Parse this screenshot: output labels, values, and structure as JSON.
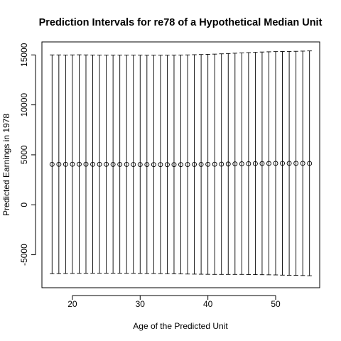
{
  "chart_data": {
    "type": "scatter",
    "title": "Prediction Intervals for re78 of a Hypothetical Median Unit",
    "xlabel": "Age of the Predicted Unit",
    "ylabel": "Predicted Earnings in 1978",
    "xlim": [
      15.5,
      56.5
    ],
    "ylim": [
      -8300,
      16300
    ],
    "x_ticks": [
      20,
      30,
      40,
      50
    ],
    "y_ticks": [
      -5000,
      0,
      5000,
      10000,
      15000
    ],
    "grid": false,
    "points": [
      {
        "x": 17,
        "fit": 4050,
        "lower": -6900,
        "upper": 15000
      },
      {
        "x": 18,
        "fit": 4050,
        "lower": -6890,
        "upper": 15000
      },
      {
        "x": 19,
        "fit": 4050,
        "lower": -6880,
        "upper": 14990
      },
      {
        "x": 20,
        "fit": 4060,
        "lower": -6870,
        "upper": 15000
      },
      {
        "x": 21,
        "fit": 4060,
        "lower": -6860,
        "upper": 15010
      },
      {
        "x": 22,
        "fit": 4060,
        "lower": -6860,
        "upper": 15000
      },
      {
        "x": 23,
        "fit": 4050,
        "lower": -6850,
        "upper": 14990
      },
      {
        "x": 24,
        "fit": 4050,
        "lower": -6850,
        "upper": 14980
      },
      {
        "x": 25,
        "fit": 4050,
        "lower": -6850,
        "upper": 14980
      },
      {
        "x": 26,
        "fit": 4040,
        "lower": -6850,
        "upper": 14980
      },
      {
        "x": 27,
        "fit": 4040,
        "lower": -6850,
        "upper": 14980
      },
      {
        "x": 28,
        "fit": 4040,
        "lower": -6860,
        "upper": 14980
      },
      {
        "x": 29,
        "fit": 4030,
        "lower": -6860,
        "upper": 14980
      },
      {
        "x": 30,
        "fit": 4030,
        "lower": -6870,
        "upper": 14980
      },
      {
        "x": 31,
        "fit": 4030,
        "lower": -6880,
        "upper": 14970
      },
      {
        "x": 32,
        "fit": 4020,
        "lower": -6880,
        "upper": 14970
      },
      {
        "x": 33,
        "fit": 4020,
        "lower": -6890,
        "upper": 14970
      },
      {
        "x": 34,
        "fit": 4020,
        "lower": -6900,
        "upper": 14970
      },
      {
        "x": 35,
        "fit": 4020,
        "lower": -6910,
        "upper": 14980
      },
      {
        "x": 36,
        "fit": 4020,
        "lower": -6920,
        "upper": 14990
      },
      {
        "x": 37,
        "fit": 4030,
        "lower": -6930,
        "upper": 15000
      },
      {
        "x": 38,
        "fit": 4040,
        "lower": -6940,
        "upper": 15020
      },
      {
        "x": 39,
        "fit": 4040,
        "lower": -6950,
        "upper": 15040
      },
      {
        "x": 40,
        "fit": 4050,
        "lower": -6960,
        "upper": 15060
      },
      {
        "x": 41,
        "fit": 4060,
        "lower": -6970,
        "upper": 15080
      },
      {
        "x": 42,
        "fit": 4070,
        "lower": -6970,
        "upper": 15110
      },
      {
        "x": 43,
        "fit": 4080,
        "lower": -6970,
        "upper": 15140
      },
      {
        "x": 44,
        "fit": 4090,
        "lower": -6970,
        "upper": 15170
      },
      {
        "x": 45,
        "fit": 4100,
        "lower": -6970,
        "upper": 15200
      },
      {
        "x": 46,
        "fit": 4110,
        "lower": -6980,
        "upper": 15230
      },
      {
        "x": 47,
        "fit": 4120,
        "lower": -6990,
        "upper": 15260
      },
      {
        "x": 48,
        "fit": 4130,
        "lower": -7000,
        "upper": 15290
      },
      {
        "x": 49,
        "fit": 4140,
        "lower": -7010,
        "upper": 15310
      },
      {
        "x": 50,
        "fit": 4150,
        "lower": -7020,
        "upper": 15330
      },
      {
        "x": 51,
        "fit": 4150,
        "lower": -7040,
        "upper": 15340
      },
      {
        "x": 52,
        "fit": 4150,
        "lower": -7050,
        "upper": 15350
      },
      {
        "x": 53,
        "fit": 4150,
        "lower": -7060,
        "upper": 15360
      },
      {
        "x": 54,
        "fit": 4150,
        "lower": -7080,
        "upper": 15380
      },
      {
        "x": 55,
        "fit": 4140,
        "lower": -7100,
        "upper": 15400
      }
    ]
  }
}
